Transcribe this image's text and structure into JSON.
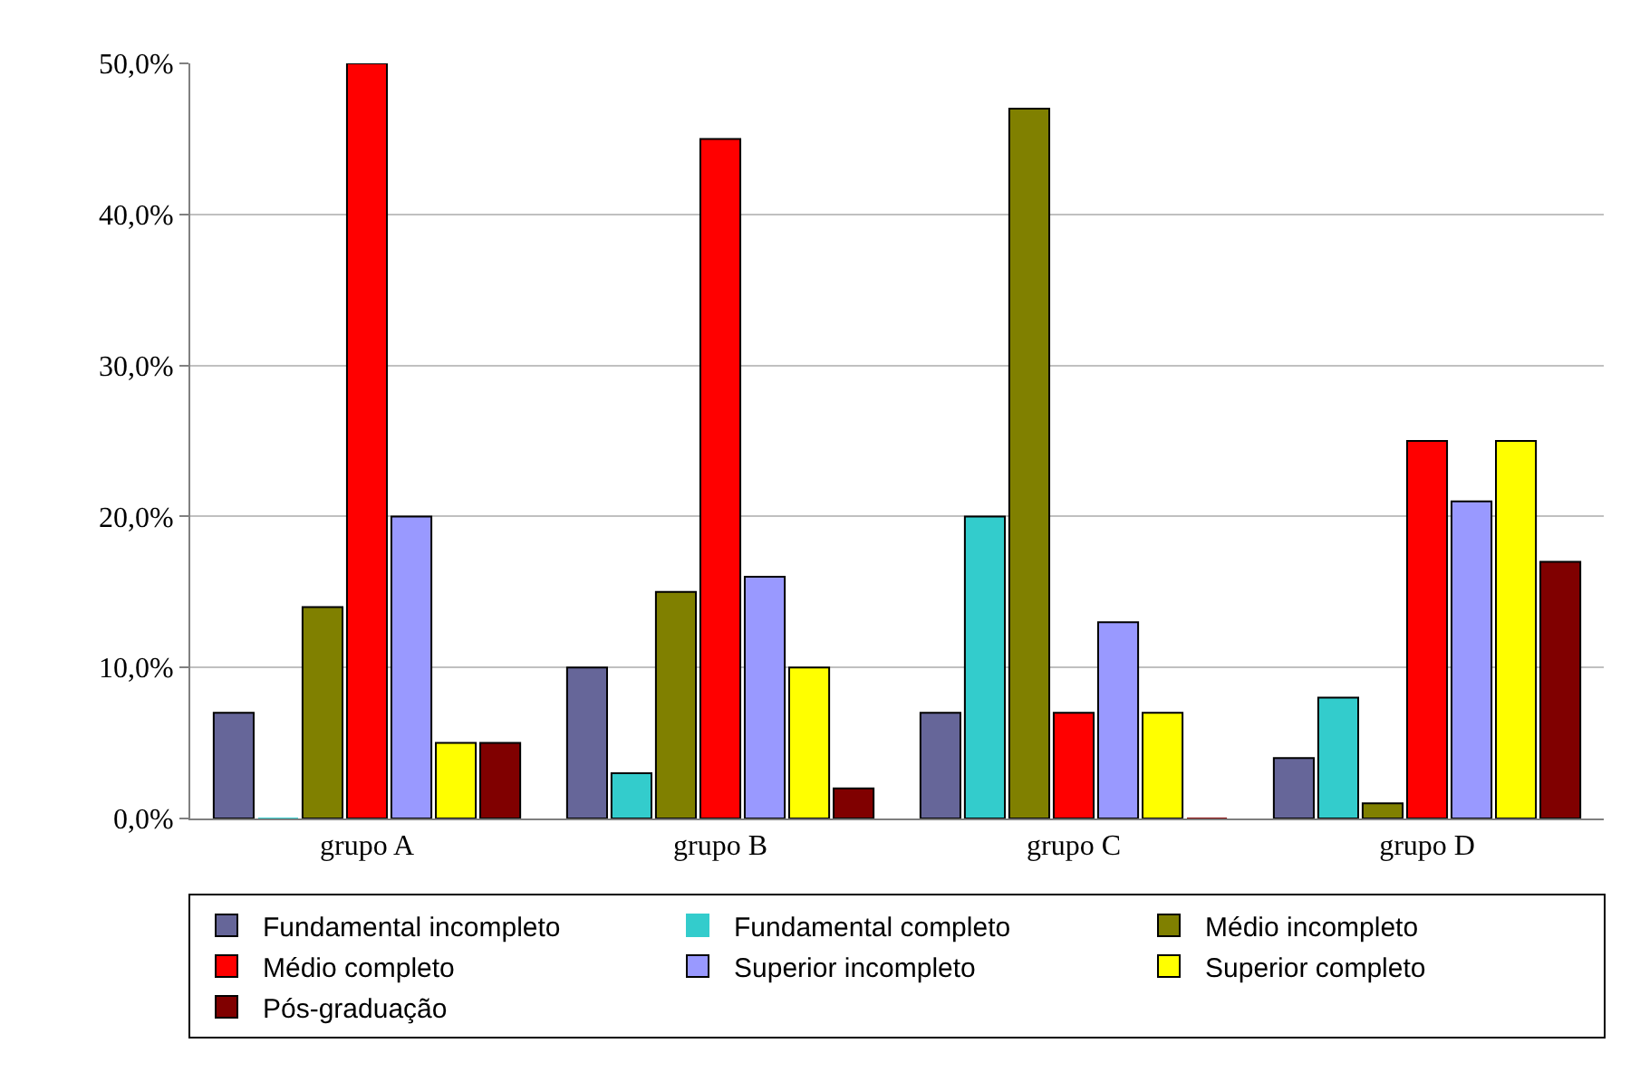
{
  "chart_data": {
    "type": "bar",
    "categories": [
      "grupo A",
      "grupo B",
      "grupo C",
      "grupo D"
    ],
    "series": [
      {
        "name": "Fundamental incompleto",
        "color": "#666699",
        "values": [
          7,
          10,
          7,
          4
        ]
      },
      {
        "name": "Fundamental completo",
        "color": "#33cccc",
        "values": [
          0,
          3,
          20,
          8
        ]
      },
      {
        "name": "Médio incompleto",
        "color": "#808000",
        "values": [
          14,
          15,
          47,
          1
        ]
      },
      {
        "name": "Médio completo",
        "color": "#ff0000",
        "values": [
          50,
          45,
          7,
          25
        ]
      },
      {
        "name": "Superior incompleto",
        "color": "#9999ff",
        "values": [
          20,
          16,
          13,
          21
        ]
      },
      {
        "name": "Superior completo",
        "color": "#ffff00",
        "values": [
          5,
          10,
          7,
          25
        ]
      },
      {
        "name": "Pós-graduação",
        "color": "#800000",
        "values": [
          5,
          2,
          0,
          17
        ]
      }
    ],
    "ylim": [
      0,
      50
    ],
    "yticks": [
      {
        "value": 0,
        "label": "0,0%"
      },
      {
        "value": 10,
        "label": "10,0%"
      },
      {
        "value": 20,
        "label": "20,0%"
      },
      {
        "value": 30,
        "label": "30,0%"
      },
      {
        "value": 40,
        "label": "40,0%"
      },
      {
        "value": 50,
        "label": "50,0%"
      }
    ],
    "grid": "y",
    "legend": "bottom"
  }
}
